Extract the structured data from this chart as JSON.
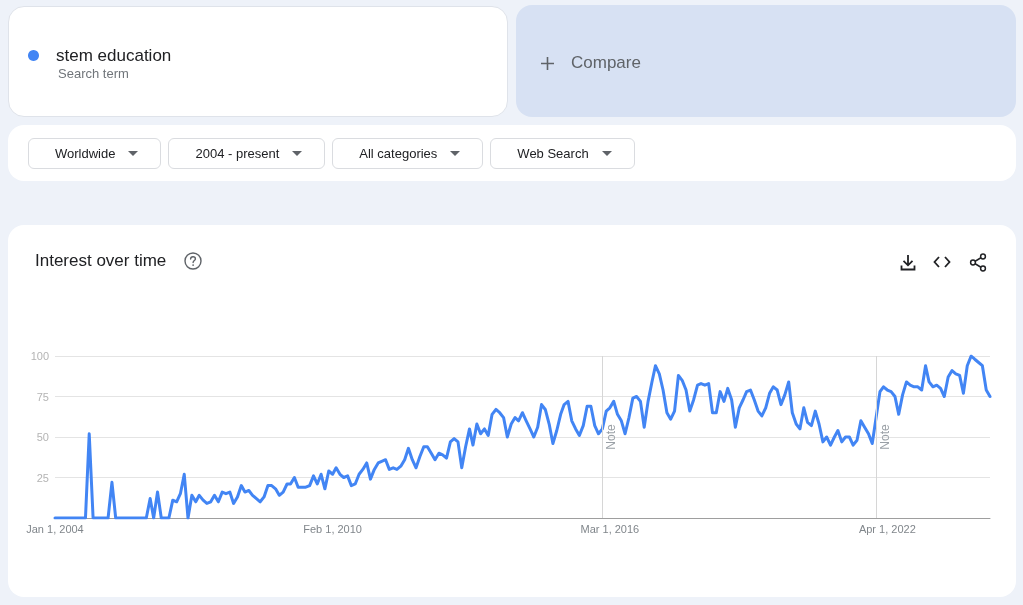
{
  "chart_data": {
    "type": "line",
    "title": "Interest over time",
    "annotations": [
      "Search term",
      "Compare",
      "Worldwide",
      "2004 - present",
      "All categories",
      "Web Search"
    ],
    "x": [
      "2004-01",
      "2004-09",
      "2004-10",
      "2004-11",
      "2005-03",
      "2005-04",
      "2005-05",
      "2006-01",
      "2006-02",
      "2006-03",
      "2006-04",
      "2006-05",
      "2006-07",
      "2006-08",
      "2006-09",
      "2006-10",
      "2006-11",
      "2006-12",
      "2007-01",
      "2007-02",
      "2007-03",
      "2007-04",
      "2007-05",
      "2007-06",
      "2007-07",
      "2007-08",
      "2007-09",
      "2007-10",
      "2007-11",
      "2007-12",
      "2008-01",
      "2008-02",
      "2008-03",
      "2008-04",
      "2008-05",
      "2008-06",
      "2008-07",
      "2008-08",
      "2008-09",
      "2008-10",
      "2008-11",
      "2008-12",
      "2009-01",
      "2009-02",
      "2009-03",
      "2009-04",
      "2009-05",
      "2009-06",
      "2009-07",
      "2009-08",
      "2009-09",
      "2009-10",
      "2009-11",
      "2009-12",
      "2010-01",
      "2010-02",
      "2010-03",
      "2010-04",
      "2010-05",
      "2010-06",
      "2010-07",
      "2010-08",
      "2010-09",
      "2010-10",
      "2010-11",
      "2010-12",
      "2011-01",
      "2011-02",
      "2011-03",
      "2011-04",
      "2011-05",
      "2011-06",
      "2011-07",
      "2011-08",
      "2011-09",
      "2011-10",
      "2011-11",
      "2011-12",
      "2012-01",
      "2012-02",
      "2012-03",
      "2012-04",
      "2012-05",
      "2012-06",
      "2012-07",
      "2012-08",
      "2012-09",
      "2012-10",
      "2012-11",
      "2012-12",
      "2013-01",
      "2013-02",
      "2013-03",
      "2013-04",
      "2013-05",
      "2013-06",
      "2013-07",
      "2013-08",
      "2013-09",
      "2013-10",
      "2013-11",
      "2013-12",
      "2014-01",
      "2014-02",
      "2014-03",
      "2014-04",
      "2014-05",
      "2014-06",
      "2014-07",
      "2014-08",
      "2014-09",
      "2014-10",
      "2014-11",
      "2014-12",
      "2015-01",
      "2015-02",
      "2015-03",
      "2015-04",
      "2015-05",
      "2015-06",
      "2015-07",
      "2015-08",
      "2015-09",
      "2015-10",
      "2015-11",
      "2015-12",
      "2016-01",
      "2016-02",
      "2016-03",
      "2016-04",
      "2016-05",
      "2016-06",
      "2016-07",
      "2016-08",
      "2016-09",
      "2016-10",
      "2016-11",
      "2016-12",
      "2017-01",
      "2017-02",
      "2017-03",
      "2017-04",
      "2017-05",
      "2017-06",
      "2017-07",
      "2017-08",
      "2017-09",
      "2017-10",
      "2017-11",
      "2017-12",
      "2018-01",
      "2018-02",
      "2018-03",
      "2018-04",
      "2018-05",
      "2018-06",
      "2018-07",
      "2018-08",
      "2018-09",
      "2018-10",
      "2018-11",
      "2018-12",
      "2019-01",
      "2019-02",
      "2019-03",
      "2019-04",
      "2019-05",
      "2019-06",
      "2019-07",
      "2019-08",
      "2019-09",
      "2019-10",
      "2019-11",
      "2019-12",
      "2020-01",
      "2020-02",
      "2020-03",
      "2020-04",
      "2020-05",
      "2020-06",
      "2020-07",
      "2020-08",
      "2020-09",
      "2020-10",
      "2020-11",
      "2020-12",
      "2021-01",
      "2021-02",
      "2021-03",
      "2021-04",
      "2021-05",
      "2021-06",
      "2021-07",
      "2021-08",
      "2021-09",
      "2021-10",
      "2021-11",
      "2021-12",
      "2022-01",
      "2022-02",
      "2022-03",
      "2022-04",
      "2022-05",
      "2022-06",
      "2022-07",
      "2022-08",
      "2022-09",
      "2022-10",
      "2022-11",
      "2022-12",
      "2023-01",
      "2023-02",
      "2023-03",
      "2023-04",
      "2023-05",
      "2023-06",
      "2023-07",
      "2023-08",
      "2023-09",
      "2023-10",
      "2023-11",
      "2023-12",
      "2024-01",
      "2024-02",
      "2024-03",
      "2024-04",
      "2024-05",
      "2024-06",
      "2024-07"
    ],
    "series": [
      {
        "name": "stem education",
        "color": "#4285f4",
        "values": [
          0,
          0,
          52,
          0,
          0,
          22,
          0,
          0,
          12,
          0,
          16,
          0,
          0,
          11,
          10,
          15,
          27,
          0,
          14,
          10,
          14,
          11,
          9,
          10,
          14,
          10,
          16,
          15,
          16,
          9,
          13,
          20,
          16,
          17,
          14,
          12,
          10,
          13,
          20,
          20,
          18,
          14,
          16,
          21,
          21,
          25,
          19,
          19,
          19,
          20,
          26,
          21,
          27,
          18,
          29,
          27,
          31,
          27,
          25,
          26,
          20,
          21,
          27,
          30,
          34,
          24,
          30,
          34,
          35,
          36,
          30,
          31,
          30,
          32,
          36,
          43,
          36,
          31,
          38,
          44,
          44,
          40,
          36,
          40,
          39,
          37,
          47,
          49,
          47,
          31,
          44,
          55,
          45,
          58,
          52,
          55,
          51,
          64,
          67,
          65,
          62,
          50,
          58,
          62,
          60,
          65,
          60,
          55,
          50,
          56,
          70,
          67,
          58,
          46,
          54,
          64,
          70,
          72,
          60,
          55,
          51,
          57,
          69,
          69,
          57,
          52,
          55,
          66,
          68,
          72,
          64,
          60,
          52,
          62,
          74,
          75,
          72,
          56,
          72,
          84,
          94,
          89,
          79,
          65,
          61,
          66,
          88,
          85,
          79,
          66,
          73,
          82,
          83,
          82,
          83,
          65,
          65,
          78,
          72,
          80,
          73,
          56,
          68,
          73,
          78,
          79,
          73,
          66,
          63,
          68,
          77,
          81,
          79,
          70,
          76,
          84,
          65,
          58,
          55,
          68,
          59,
          57,
          66,
          58,
          47,
          50,
          45,
          50,
          54,
          47,
          50,
          50,
          45,
          48,
          60,
          56,
          52,
          46,
          62,
          78,
          81,
          79,
          78,
          75,
          64,
          76,
          84,
          82,
          81,
          81,
          79,
          94,
          84,
          81,
          82,
          80,
          75,
          87,
          91,
          89,
          88,
          77,
          94,
          100,
          98,
          96,
          94,
          79,
          75
        ]
      }
    ],
    "xlim": [
      "2004-01",
      "2024-07"
    ],
    "xticks": [
      {
        "value": "2004-01-01",
        "label": "Jan 1, 2004"
      },
      {
        "value": "2010-02-01",
        "label": "Feb 1, 2010"
      },
      {
        "value": "2016-03-01",
        "label": "Mar 1, 2016"
      },
      {
        "value": "2022-04-01",
        "label": "Apr 1, 2022"
      }
    ],
    "ylim": [
      0,
      100
    ],
    "yticks": [
      25,
      50,
      75,
      100
    ],
    "ref_lines": [
      {
        "axis": "x",
        "value": "2016-01",
        "label": "Note",
        "color": "#d6d6d6"
      },
      {
        "axis": "x",
        "value": "2022-01",
        "label": "Note",
        "color": "#d6d6d6"
      }
    ],
    "grid": "y",
    "legend": "top left",
    "marker": "none",
    "line_style": "solid"
  }
}
